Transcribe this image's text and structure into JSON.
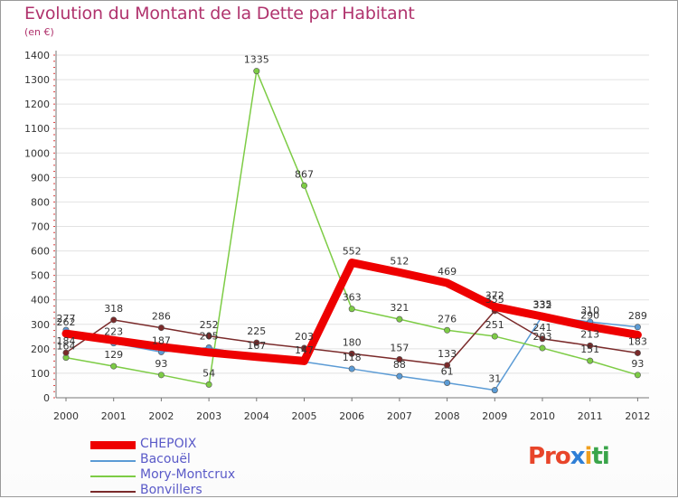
{
  "chart_data": {
    "type": "line",
    "title": "Evolution du Montant de la Dette par Habitant",
    "subtitle": "(en €)",
    "xlabel": "",
    "ylabel": "(en €)",
    "ylim": [
      0,
      1400
    ],
    "y_ticks": [
      0,
      100,
      200,
      300,
      400,
      500,
      600,
      700,
      800,
      900,
      1000,
      1100,
      1200,
      1300,
      1400
    ],
    "x": [
      "2000",
      "2001",
      "2002",
      "2003",
      "2004",
      "2005",
      "2006",
      "2007",
      "2008",
      "2009",
      "2010",
      "2011",
      "2012"
    ],
    "series": [
      {
        "name": "CHEPOIX",
        "color": "#ee0000",
        "values": [
          262,
          235,
          208,
          185,
          167,
          150,
          552,
          512,
          469,
          372,
          332,
          290,
          257
        ],
        "labels_shown": [
          true,
          false,
          false,
          false,
          false,
          false,
          true,
          true,
          true,
          true,
          true,
          true,
          false
        ]
      },
      {
        "name": "Bacouël",
        "color": "#5b9bd5",
        "values": [
          277,
          223,
          187,
          205,
          167,
          147,
          118,
          88,
          61,
          31,
          335,
          310,
          289
        ],
        "labels_shown": [
          true,
          true,
          true,
          true,
          true,
          true,
          true,
          true,
          true,
          true,
          true,
          true,
          true
        ]
      },
      {
        "name": "Mory-Montcrux",
        "color": "#7dcc45",
        "values": [
          164,
          129,
          93,
          54,
          1335,
          867,
          363,
          321,
          276,
          251,
          203,
          151,
          93
        ],
        "labels_shown": [
          true,
          true,
          true,
          true,
          true,
          true,
          true,
          true,
          true,
          true,
          true,
          true,
          true
        ]
      },
      {
        "name": "Bonvillers",
        "color": "#7a2a2a",
        "values": [
          184,
          318,
          286,
          252,
          225,
          203,
          180,
          157,
          133,
          355,
          241,
          213,
          183
        ],
        "labels_shown": [
          true,
          true,
          true,
          true,
          true,
          true,
          true,
          true,
          true,
          true,
          true,
          true,
          true
        ]
      }
    ],
    "legend_position": "bottom-left"
  },
  "logo": {
    "letters": [
      "Pro",
      "x",
      "i",
      "ti"
    ]
  }
}
